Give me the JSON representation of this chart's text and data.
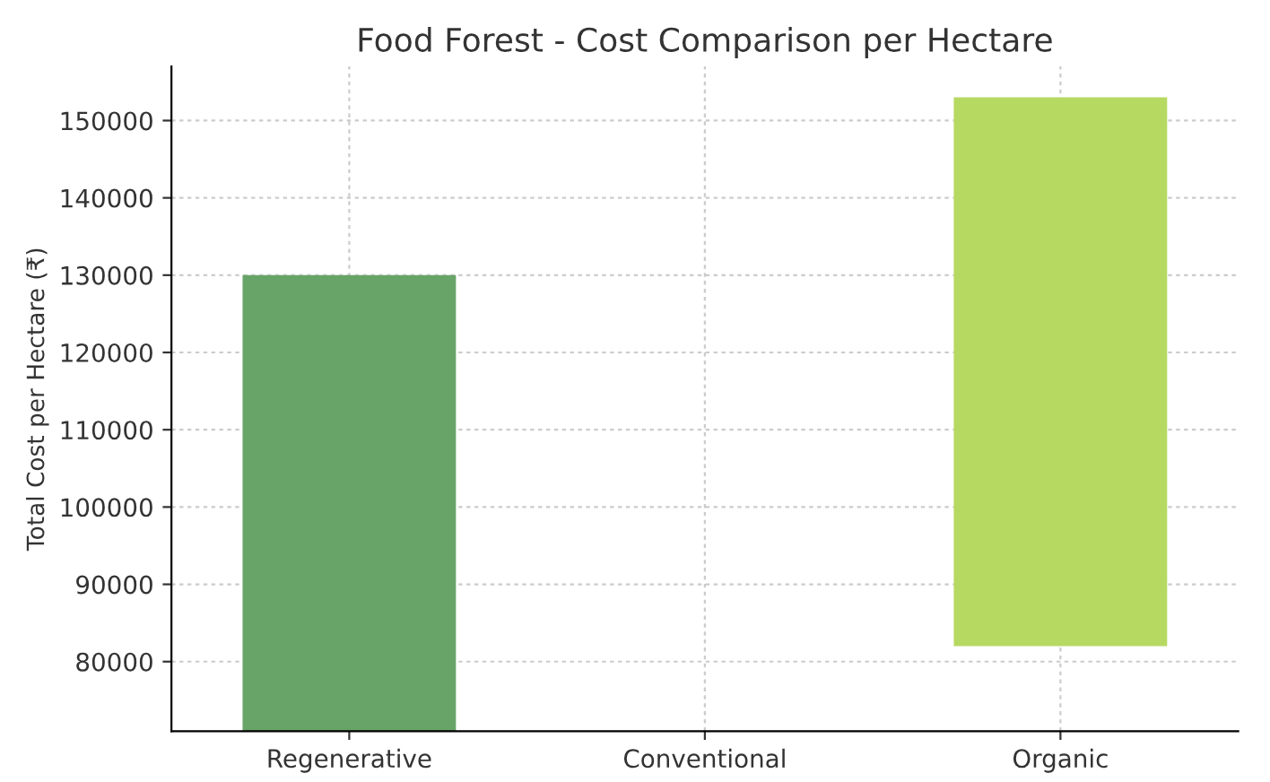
{
  "chart_data": {
    "type": "bar",
    "title": "Food Forest - Cost Comparison per Hectare",
    "ylabel": "Total Cost per Hectare (₹)",
    "categories": [
      "Regenerative",
      "Conventional",
      "Organic"
    ],
    "values": [
      59000,
      null,
      71000
    ],
    "base": [
      71000,
      null,
      82000
    ],
    "colors": [
      "#68a468",
      "#9fc77e",
      "#b6d962"
    ],
    "ylim": [
      71000,
      157000
    ],
    "yticks": [
      80000,
      90000,
      100000,
      110000,
      120000,
      130000,
      140000,
      150000
    ],
    "grid": true
  }
}
